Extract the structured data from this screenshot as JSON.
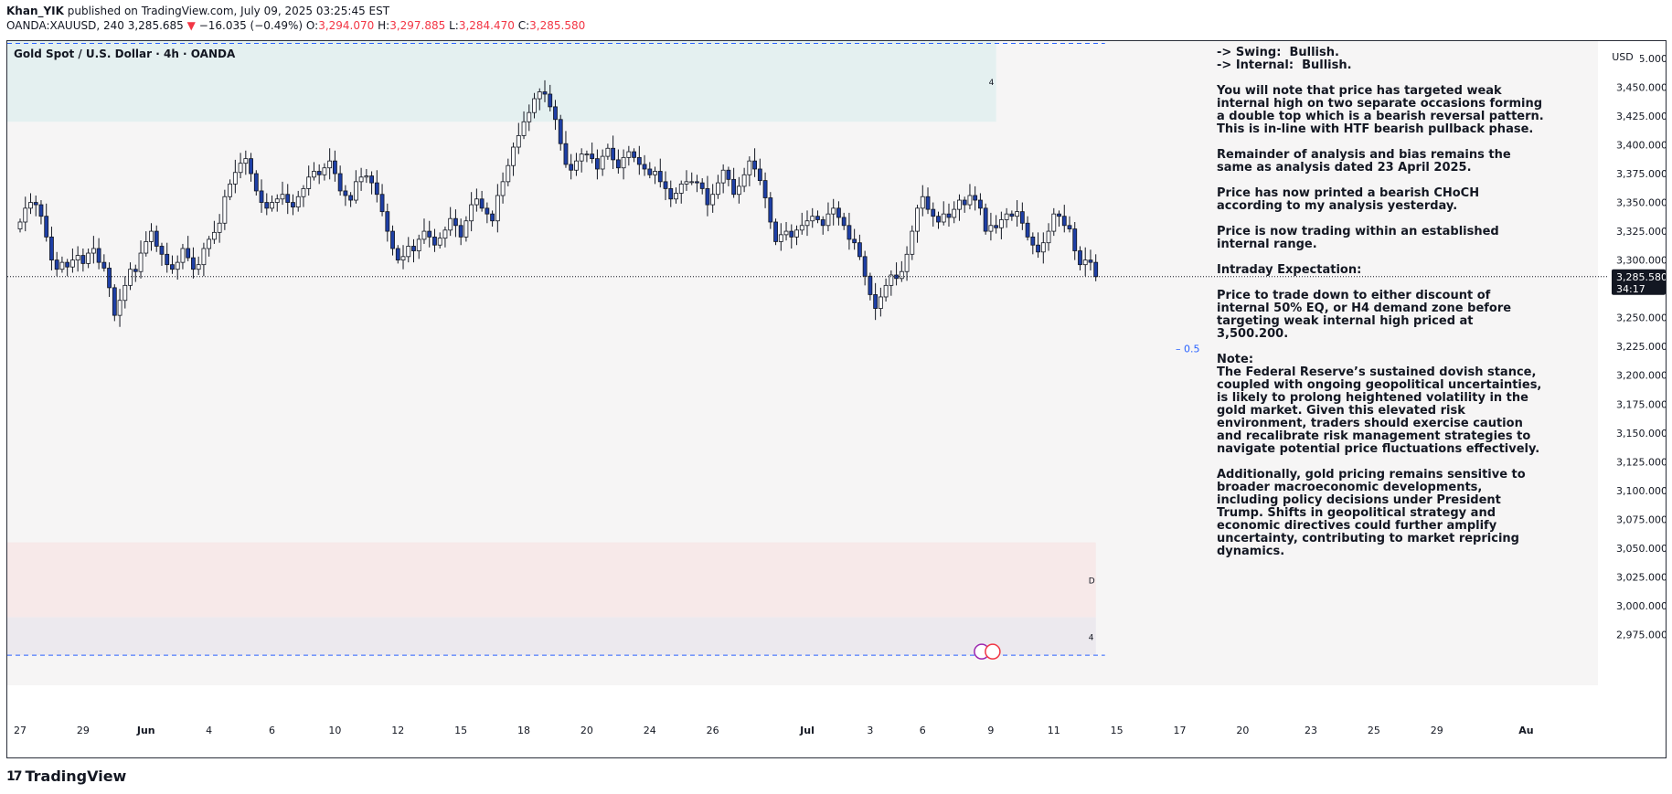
{
  "header": {
    "author": "Khan_YIK",
    "published_text": "published on TradingView.com, July 09, 2025 03:25:45 EST",
    "symbol": "OANDA:XAUUSD, 240",
    "last": "3,285.685",
    "change_arrow": "▼",
    "change": "−16.035 (−0.49%)",
    "o_label": "O:",
    "o": "3,294.070",
    "h_label": "H:",
    "h": "3,297.885",
    "l_label": "L:",
    "l": "3,284.470",
    "c_label": "C:",
    "c": "3,285.580"
  },
  "chart_title": "Gold Spot / U.S. Dollar · 4h · OANDA",
  "currency_button": "USD",
  "colors": {
    "bull": "#ffffff",
    "bear": "#1e3fa6",
    "wick": "#131722",
    "zone_top": "#e4f0f0",
    "zone_bottom_pink": "#f7e9e9",
    "zone_bottom_grey": "#ece9ee",
    "bg": "#f6f5f5",
    "dash": "#2962ff",
    "price_label_bg": "#131722"
  },
  "notes": [
    "-> Swing:  Bullish.\n-> Internal:  Bullish.",
    "You will note that price has targeted weak internal high on two separate occasions forming a double top which is a bearish reversal pattern. This is in-line with HTF bearish pullback phase.",
    "Remainder of analysis and bias remains the same as analysis dated 23 April 2025.",
    "Price has now printed a bearish CHoCH according to my analysis yesterday.",
    "Price is now trading within an established internal range.",
    "Intraday Expectation:",
    "Price to trade down to either discount of internal 50% EQ, or H4 demand zone before targeting weak internal high priced at 3,500.200.",
    "Note:\nThe Federal Reserve’s sustained dovish stance, coupled with ongoing geopolitical uncertainties, is likely to prolong heightened volatility in the gold market. Given this elevated risk environment, traders should exercise caution and recalibrate risk management strategies to navigate potential price fluctuations effectively.",
    "Additionally, gold pricing remains sensitive to broader macroeconomic developments, including policy decisions under President Trump. Shifts in geopolitical strategy and economic directives could further amplify uncertainty, contributing to market repricing dynamics."
  ],
  "footer": {
    "brand": "TradingView",
    "mark": "17"
  },
  "chart_data": {
    "type": "candlestick",
    "timeframe": "4h",
    "ylim": [
      2950,
      3490
    ],
    "y_ticks": [
      3475,
      3450,
      3425,
      3400,
      3375,
      3350,
      3325,
      3300,
      3250,
      3225,
      3200,
      3175,
      3150,
      3125,
      3100,
      3075,
      3050,
      3025,
      3000,
      2975
    ],
    "y_tick_labels": [
      "3,475.000",
      "3,450.000",
      "3,425.000",
      "3,400.000",
      "3,375.000",
      "3,350.000",
      "3,325.000",
      "3,300.000",
      "3,250.000",
      "3,225.000",
      "3,200.000",
      "3,175.000",
      "3,150.000",
      "3,125.000",
      "3,100.000",
      "3,075.000",
      "3,050.000",
      "3,025.000",
      "3,000.000",
      "2,975.000"
    ],
    "current_price": 3285.58,
    "current_price_label": "3,285.580",
    "countdown": "34:17",
    "x_ticks": [
      {
        "label": "27",
        "bar": 0
      },
      {
        "label": "29",
        "bar": 12
      },
      {
        "label": "Jun",
        "bar": 24
      },
      {
        "label": "4",
        "bar": 36
      },
      {
        "label": "6",
        "bar": 48
      },
      {
        "label": "10",
        "bar": 60
      },
      {
        "label": "12",
        "bar": 72
      },
      {
        "label": "15",
        "bar": 84
      },
      {
        "label": "18",
        "bar": 96
      },
      {
        "label": "20",
        "bar": 108
      },
      {
        "label": "24",
        "bar": 120
      },
      {
        "label": "26",
        "bar": 132
      },
      {
        "label": "Jul",
        "bar": 150
      },
      {
        "label": "3",
        "bar": 162
      },
      {
        "label": "6",
        "bar": 172
      },
      {
        "label": "9",
        "bar": 185
      },
      {
        "label": "11",
        "bar": 197
      },
      {
        "label": "15",
        "bar": 209
      },
      {
        "label": "17",
        "bar": 221
      },
      {
        "label": "20",
        "bar": 233
      },
      {
        "label": "23",
        "bar": 246
      },
      {
        "label": "25",
        "bar": 258
      },
      {
        "label": "29",
        "bar": 270
      },
      {
        "label": "Au",
        "bar": 287
      }
    ],
    "close": [
      3333,
      3345,
      3350,
      3348,
      3338,
      3320,
      3300,
      3292,
      3298,
      3294,
      3300,
      3304,
      3297,
      3306,
      3310,
      3298,
      3293,
      3276,
      3252,
      3265,
      3278,
      3292,
      3290,
      3306,
      3316,
      3325,
      3312,
      3305,
      3296,
      3292,
      3298,
      3310,
      3302,
      3292,
      3296,
      3310,
      3318,
      3324,
      3332,
      3355,
      3366,
      3376,
      3384,
      3388,
      3375,
      3360,
      3350,
      3345,
      3350,
      3353,
      3357,
      3350,
      3346,
      3355,
      3362,
      3372,
      3377,
      3374,
      3380,
      3386,
      3375,
      3360,
      3356,
      3352,
      3368,
      3372,
      3373,
      3367,
      3357,
      3342,
      3325,
      3310,
      3300,
      3303,
      3312,
      3308,
      3318,
      3325,
      3320,
      3313,
      3319,
      3326,
      3336,
      3330,
      3320,
      3334,
      3348,
      3353,
      3345,
      3340,
      3334,
      3356,
      3368,
      3382,
      3398,
      3408,
      3420,
      3428,
      3440,
      3446,
      3444,
      3433,
      3422,
      3401,
      3383,
      3378,
      3386,
      3392,
      3392,
      3388,
      3379,
      3390,
      3397,
      3387,
      3380,
      3389,
      3394,
      3389,
      3383,
      3379,
      3374,
      3377,
      3368,
      3362,
      3353,
      3358,
      3366,
      3368,
      3368,
      3367,
      3362,
      3348,
      3357,
      3367,
      3378,
      3370,
      3357,
      3364,
      3374,
      3386,
      3379,
      3369,
      3354,
      3333,
      3316,
      3322,
      3325,
      3320,
      3326,
      3330,
      3334,
      3338,
      3335,
      3330,
      3340,
      3345,
      3337,
      3330,
      3318,
      3315,
      3303,
      3286,
      3270,
      3258,
      3268,
      3278,
      3287,
      3284,
      3290,
      3305,
      3325,
      3345,
      3355,
      3344,
      3338,
      3333,
      3340,
      3337,
      3344,
      3352,
      3348,
      3356,
      3352,
      3345,
      3325,
      3330,
      3328,
      3335,
      3340,
      3338,
      3342,
      3332,
      3320,
      3313,
      3307,
      3315,
      3325,
      3340,
      3338,
      3330,
      3327,
      3308,
      3296,
      3300,
      3298,
      3285.58
    ],
    "zones": [
      {
        "label": "4",
        "from": 3420,
        "to": 3490,
        "end_bar": 186
      },
      {
        "label": "D",
        "from": 2990,
        "to": 3055,
        "end_bar": 205
      },
      {
        "label": "4",
        "from": 2957,
        "to": 2990,
        "end_bar": 205
      }
    ],
    "eq_label": "0.5",
    "dashed_levels": [
      3488,
      2957
    ]
  }
}
